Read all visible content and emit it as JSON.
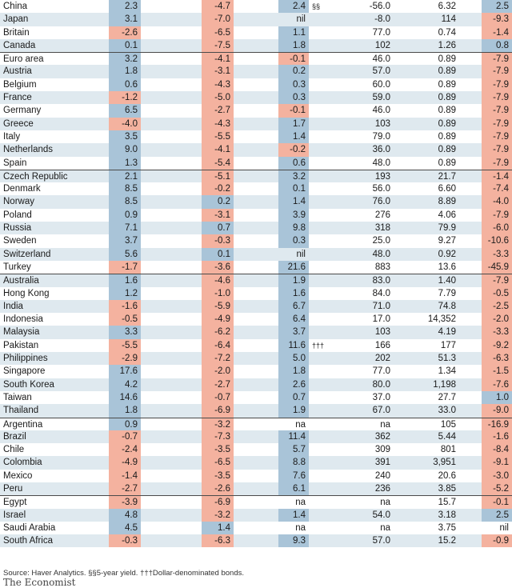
{
  "rows": [
    {
      "country": "China",
      "c1": "2.3",
      "c2": "-4.7",
      "c3": "2.4",
      "fn": "§§",
      "c4": "-56.0",
      "c5": "6.32",
      "c6": "2.5"
    },
    {
      "country": "Japan",
      "c1": "3.1",
      "c2": "-7.0",
      "c3": "nil",
      "c4": "-8.0",
      "c5": "114",
      "c6": "-9.3"
    },
    {
      "country": "Britain",
      "c1": "-2.6",
      "c2": "-6.5",
      "c3": "1.1",
      "c4": "77.0",
      "c5": "0.74",
      "c6": "-1.4"
    },
    {
      "country": "Canada",
      "c1": "0.1",
      "c2": "-7.5",
      "c3": "1.8",
      "c4": "102",
      "c5": "1.26",
      "c6": "0.8"
    },
    {
      "country": "Euro area",
      "c1": "3.2",
      "c2": "-4.1",
      "c3": "-0.1",
      "c4": "46.0",
      "c5": "0.89",
      "c6": "-7.9",
      "sep": true
    },
    {
      "country": "Austria",
      "c1": "1.8",
      "c2": "-3.1",
      "c3": "0.2",
      "c4": "57.0",
      "c5": "0.89",
      "c6": "-7.9"
    },
    {
      "country": "Belgium",
      "c1": "0.6",
      "c2": "-4.3",
      "c3": "0.3",
      "c4": "60.0",
      "c5": "0.89",
      "c6": "-7.9"
    },
    {
      "country": "France",
      "c1": "-1.2",
      "c2": "-5.0",
      "c3": "0.3",
      "c4": "59.0",
      "c5": "0.89",
      "c6": "-7.9"
    },
    {
      "country": "Germany",
      "c1": "6.5",
      "c2": "-2.7",
      "c3": "-0.1",
      "c4": "46.0",
      "c5": "0.89",
      "c6": "-7.9"
    },
    {
      "country": "Greece",
      "c1": "-4.0",
      "c2": "-4.3",
      "c3": "1.7",
      "c4": "103",
      "c5": "0.89",
      "c6": "-7.9"
    },
    {
      "country": "Italy",
      "c1": "3.5",
      "c2": "-5.5",
      "c3": "1.4",
      "c4": "79.0",
      "c5": "0.89",
      "c6": "-7.9"
    },
    {
      "country": "Netherlands",
      "c1": "9.0",
      "c2": "-4.1",
      "c3": "-0.2",
      "c4": "36.0",
      "c5": "0.89",
      "c6": "-7.9"
    },
    {
      "country": "Spain",
      "c1": "1.3",
      "c2": "-5.4",
      "c3": "0.6",
      "c4": "48.0",
      "c5": "0.89",
      "c6": "-7.9"
    },
    {
      "country": "Czech Republic",
      "c1": "2.1",
      "c2": "-5.1",
      "c3": "3.2",
      "c4": "193",
      "c5": "21.7",
      "c6": "-1.4",
      "sep": true
    },
    {
      "country": "Denmark",
      "c1": "8.5",
      "c2": "-0.2",
      "c3": "0.1",
      "c4": "56.0",
      "c5": "6.60",
      "c6": "-7.4"
    },
    {
      "country": "Norway",
      "c1": "8.5",
      "c2": "0.2",
      "c3": "1.4",
      "c4": "76.0",
      "c5": "8.89",
      "c6": "-4.0"
    },
    {
      "country": "Poland",
      "c1": "0.9",
      "c2": "-3.1",
      "c3": "3.9",
      "c4": "276",
      "c5": "4.06",
      "c6": "-7.9"
    },
    {
      "country": "Russia",
      "c1": "7.1",
      "c2": "0.7",
      "c3": "9.8",
      "c4": "318",
      "c5": "79.9",
      "c6": "-6.0"
    },
    {
      "country": "Sweden",
      "c1": "3.7",
      "c2": "-0.3",
      "c3": "0.3",
      "c4": "25.0",
      "c5": "9.27",
      "c6": "-10.6"
    },
    {
      "country": "Switzerland",
      "c1": "5.6",
      "c2": "0.1",
      "c3": "nil",
      "c4": "48.0",
      "c5": "0.92",
      "c6": "-3.3"
    },
    {
      "country": "Turkey",
      "c1": "-1.7",
      "c2": "-3.6",
      "c3": "21.6",
      "c4": "883",
      "c5": "13.6",
      "c6": "-45.9"
    },
    {
      "country": "Australia",
      "c1": "1.6",
      "c2": "-4.6",
      "c3": "1.9",
      "c4": "83.0",
      "c5": "1.40",
      "c6": "-7.9",
      "sep": true
    },
    {
      "country": "Hong Kong",
      "c1": "1.2",
      "c2": "-1.0",
      "c3": "1.6",
      "c4": "84.0",
      "c5": "7.79",
      "c6": "-0.5"
    },
    {
      "country": "India",
      "c1": "-1.6",
      "c2": "-5.9",
      "c3": "6.7",
      "c4": "71.0",
      "c5": "74.8",
      "c6": "-2.5"
    },
    {
      "country": "Indonesia",
      "c1": "-0.5",
      "c2": "-4.9",
      "c3": "6.4",
      "c4": "17.0",
      "c5": "14,352",
      "c6": "-2.0"
    },
    {
      "country": "Malaysia",
      "c1": "3.3",
      "c2": "-6.2",
      "c3": "3.7",
      "c4": "103",
      "c5": "4.19",
      "c6": "-3.3"
    },
    {
      "country": "Pakistan",
      "c1": "-5.5",
      "c2": "-6.4",
      "c3": "11.6",
      "fn": "†††",
      "c4": "166",
      "c5": "177",
      "c6": "-9.2"
    },
    {
      "country": "Philippines",
      "c1": "-2.9",
      "c2": "-7.2",
      "c3": "5.0",
      "c4": "202",
      "c5": "51.3",
      "c6": "-6.3"
    },
    {
      "country": "Singapore",
      "c1": "17.6",
      "c2": "-2.0",
      "c3": "1.8",
      "c4": "77.0",
      "c5": "1.34",
      "c6": "-1.5"
    },
    {
      "country": "South Korea",
      "c1": "4.2",
      "c2": "-2.7",
      "c3": "2.6",
      "c4": "80.0",
      "c5": "1,198",
      "c6": "-7.6"
    },
    {
      "country": "Taiwan",
      "c1": "14.6",
      "c2": "-0.7",
      "c3": "0.7",
      "c4": "37.0",
      "c5": "27.7",
      "c6": "1.0"
    },
    {
      "country": "Thailand",
      "c1": "1.8",
      "c2": "-6.9",
      "c3": "1.9",
      "c4": "67.0",
      "c5": "33.0",
      "c6": "-9.0"
    },
    {
      "country": "Argentina",
      "c1": "0.9",
      "c2": "-3.2",
      "c3": "na",
      "c4": "na",
      "c5": "105",
      "c6": "-16.9",
      "sep": true
    },
    {
      "country": "Brazil",
      "c1": "-0.7",
      "c2": "-7.3",
      "c3": "11.4",
      "c4": "362",
      "c5": "5.44",
      "c6": "-1.6"
    },
    {
      "country": "Chile",
      "c1": "-2.4",
      "c2": "-3.5",
      "c3": "5.7",
      "c4": "309",
      "c5": "801",
      "c6": "-8.4"
    },
    {
      "country": "Colombia",
      "c1": "-4.9",
      "c2": "-6.5",
      "c3": "8.8",
      "c4": "391",
      "c5": "3,951",
      "c6": "-9.1"
    },
    {
      "country": "Mexico",
      "c1": "-1.4",
      "c2": "-3.5",
      "c3": "7.6",
      "c4": "240",
      "c5": "20.6",
      "c6": "-3.0"
    },
    {
      "country": "Peru",
      "c1": "-2.7",
      "c2": "-2.6",
      "c3": "6.1",
      "c4": "236",
      "c5": "3.85",
      "c6": "-5.2"
    },
    {
      "country": "Egypt",
      "c1": "-3.9",
      "c2": "-6.9",
      "c3": "na",
      "c4": "na",
      "c5": "15.7",
      "c6": "-0.1",
      "sep": true
    },
    {
      "country": "Israel",
      "c1": "4.8",
      "c2": "-3.2",
      "c3": "1.4",
      "c4": "54.0",
      "c5": "3.18",
      "c6": "2.5"
    },
    {
      "country": "Saudi Arabia",
      "c1": "4.5",
      "c2": "1.4",
      "c3": "na",
      "c4": "na",
      "c5": "3.75",
      "c6": "nil"
    },
    {
      "country": "South Africa",
      "c1": "-0.3",
      "c2": "-6.3",
      "c3": "9.3",
      "c4": "57.0",
      "c5": "15.2",
      "c6": "-0.9"
    }
  ],
  "colors": {
    "positive": "#a9c4d8",
    "negative": "#f4b29f",
    "stripe": "#dfe9ef"
  },
  "footer": {
    "source": "Source: Haver Analytics. §§5-year yield. †††Dollar-denominated bonds.",
    "brand": "The Economist"
  }
}
